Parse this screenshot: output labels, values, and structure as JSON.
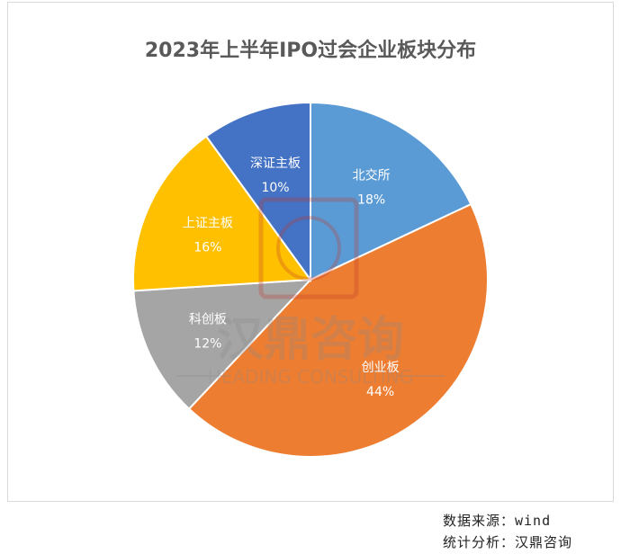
{
  "chart_data": {
    "type": "pie",
    "title": "2023年上半年IPO过会企业板块分布",
    "slices": [
      {
        "label": "北交所",
        "value": 18,
        "value_label": "18%",
        "color": "#5B9BD5"
      },
      {
        "label": "创业板",
        "value": 44,
        "value_label": "44%",
        "color": "#ED7D31"
      },
      {
        "label": "科创板",
        "value": 12,
        "value_label": "12%",
        "color": "#A5A5A5"
      },
      {
        "label": "上证主板",
        "value": 16,
        "value_label": "16%",
        "color": "#FFC000"
      },
      {
        "label": "深证主板",
        "value": 10,
        "value_label": "10%",
        "color": "#4472C4"
      }
    ],
    "start_angle_deg": 0,
    "direction": "clockwise",
    "label_color": "#ffffff"
  },
  "watermark": {
    "brand": "汉鼎咨询",
    "subtitle": "HEADING CONSULTING"
  },
  "source": {
    "line1": "数据来源：wind",
    "line2": "统计分析：汉鼎咨询"
  }
}
